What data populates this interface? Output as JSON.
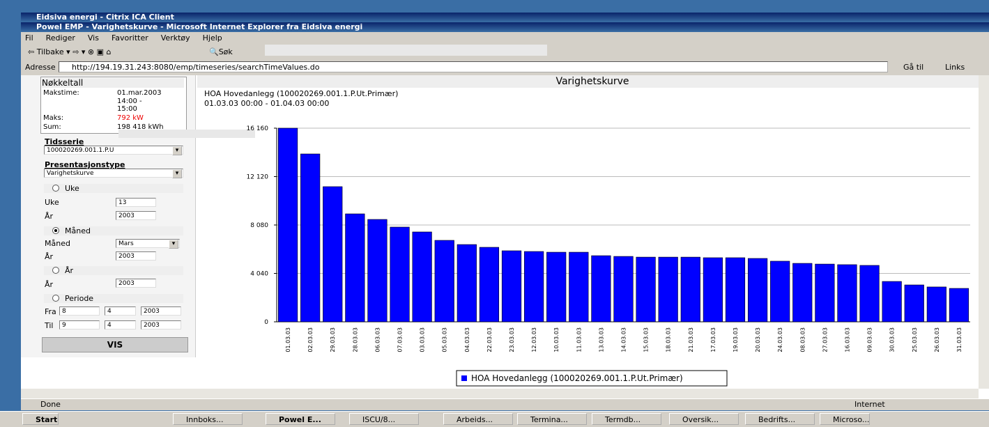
{
  "window": {
    "outer_title": "Eidsiva energi - Citrix ICA Client",
    "title": "Powel EMP - Varighetskurve - Microsoft Internet Explorer fra Eidsiva energi"
  },
  "menu": [
    "Fil",
    "Rediger",
    "Vis",
    "Favoritter",
    "Verktøy",
    "Hjelp"
  ],
  "toolbar": [
    "Tilbake",
    "Søk"
  ],
  "address": {
    "label": "Adresse",
    "url": "http://194.19.31.243:8080/emp/timeseries/searchTimeValues.do",
    "go": "Gå til",
    "links": "Links"
  },
  "keyfigures": {
    "title": "Nøkkeltall",
    "rows": [
      {
        "label": "Makstime:",
        "lines": [
          "01.mar.2003",
          "14:00 -",
          "15:00"
        ]
      },
      {
        "label": "Maks:",
        "lines": [
          "792 kW"
        ]
      },
      {
        "label": "Sum:",
        "lines": [
          "198 418 kWh"
        ]
      }
    ]
  },
  "form": {
    "series_label": "Tidsserie",
    "series_value": "100020269.001.1.P.U",
    "type_label": "Presentasjonstype",
    "type_value": "Varighetskurve",
    "week": {
      "radio": "Uke",
      "week_label": "Uke",
      "week_value": "13",
      "year_label": "År",
      "year_value": "2003"
    },
    "month": {
      "radio": "Måned",
      "month_label": "Måned",
      "month_value": "Mars",
      "year_label": "År",
      "year_value": "2003"
    },
    "year": {
      "radio": "År",
      "year_label": "År",
      "year_value": "2003"
    },
    "period": {
      "radio": "Periode",
      "from_label": "Fra",
      "from": [
        "8",
        "4",
        "2003"
      ],
      "to_label": "Til",
      "to": [
        "9",
        "4",
        "2003"
      ]
    },
    "button": "VIS"
  },
  "chart_data": {
    "type": "bar",
    "title": "Varighetskurve",
    "subtitle": [
      "HOA Hovedanlegg (100020269.001.1.P.Ut.Primær)",
      "01.03.03 00:00 - 01.04.03 00:00"
    ],
    "categories": [
      "01.03.03",
      "02.03.03",
      "29.03.03",
      "28.03.03",
      "06.03.03",
      "07.03.03",
      "03.03.03",
      "05.03.03",
      "04.03.03",
      "22.03.03",
      "23.03.03",
      "12.03.03",
      "10.03.03",
      "11.03.03",
      "13.03.03",
      "14.03.03",
      "15.03.03",
      "18.03.03",
      "21.03.03",
      "17.03.03",
      "19.03.03",
      "20.03.03",
      "24.03.03",
      "08.03.03",
      "27.03.03",
      "16.03.03",
      "09.03.03",
      "30.03.03",
      "25.03.03",
      "26.03.03",
      "31.03.03"
    ],
    "series": [
      {
        "name": "HOA Hovedanlegg (100020269.001.1.P.Ut.Primær)",
        "color": "#0000ff",
        "values": [
          16160,
          14010,
          11280,
          9010,
          8545,
          7906,
          7500,
          6800,
          6450,
          6220,
          5930,
          5870,
          5810,
          5810,
          5520,
          5460,
          5400,
          5400,
          5400,
          5350,
          5350,
          5290,
          5060,
          4880,
          4820,
          4770,
          4710,
          3370,
          3080,
          2910,
          2790
        ]
      }
    ],
    "ylim": [
      0,
      16160
    ],
    "yticks": [
      0,
      {
        "value": 4040,
        "label": "4 040"
      },
      {
        "value": 8080,
        "label": "8 080"
      },
      {
        "value": 12120,
        "label": "12 120"
      },
      {
        "value": 16160,
        "label": "16 160"
      }
    ],
    "grid": true
  },
  "status": {
    "text": "Done",
    "zone": "Internet"
  },
  "taskbar": {
    "start": "Start",
    "items": [
      "Innboks...",
      "Powel E...",
      "ISCU/8...",
      "Arbeids...",
      "Termina...",
      "Termdb...",
      "Oversik...",
      "Bedrifts...",
      "Microso..."
    ]
  }
}
